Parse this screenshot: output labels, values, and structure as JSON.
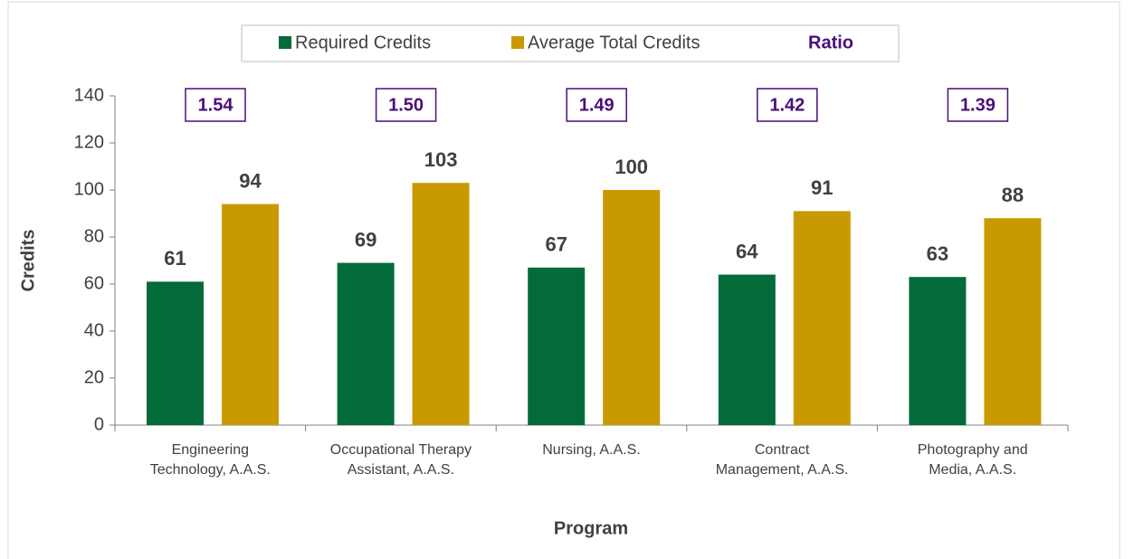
{
  "chart_data": {
    "type": "bar",
    "xlabel": "Program",
    "ylabel": "Credits",
    "categories": [
      "Engineering\nTechnology, A.A.S.",
      "Occupational Therapy\nAssistant, A.A.S.",
      "Nursing, A.A.S.",
      "Contract\nManagement, A.A.S.",
      "Photography and\nMedia, A.A.S."
    ],
    "series": [
      {
        "name": "Required Credits",
        "color": "#036b3a",
        "values": [
          61,
          69,
          67,
          64,
          63
        ]
      },
      {
        "name": "Average Total Credits",
        "color": "#c99a00",
        "values": [
          94,
          103,
          100,
          91,
          88
        ]
      }
    ],
    "ratio": {
      "name": "Ratio",
      "color": "#4b0e7a",
      "values": [
        1.54,
        1.5,
        1.49,
        1.42,
        1.39
      ],
      "value_labels": [
        "1.54",
        "1.50",
        "1.49",
        "1.42",
        "1.39"
      ]
    },
    "ylim": [
      0,
      140
    ],
    "yticks": [
      0,
      20,
      40,
      60,
      80,
      100,
      120,
      140
    ],
    "grid": false
  }
}
